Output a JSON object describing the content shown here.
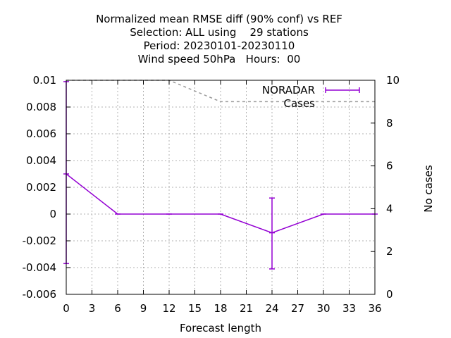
{
  "chart_data": {
    "type": "line",
    "title": [
      "Normalized mean RMSE diff (90% conf) vs REF",
      "Selection: ALL using    29 stations",
      "Period: 20230101-20230110",
      "Wind speed 50hPa   Hours:  00"
    ],
    "xlabel": "Forecast length",
    "ylabel": "",
    "y2label": "No cases",
    "x_ticks": [
      0,
      3,
      6,
      9,
      12,
      15,
      18,
      21,
      24,
      27,
      30,
      33,
      36
    ],
    "y_ticks": [
      -0.006,
      -0.004,
      -0.002,
      0,
      0.002,
      0.004,
      0.006,
      0.008,
      0.01
    ],
    "y_tick_labels": [
      "-0.006",
      "-0.004",
      "-0.002",
      "0",
      "0.002",
      "0.004",
      "0.006",
      "0.008",
      "0.01"
    ],
    "y2_ticks": [
      0,
      2,
      4,
      6,
      8,
      10
    ],
    "y2_tick_labels": [
      "0",
      "2",
      "4",
      "6",
      "8",
      "10"
    ],
    "xlim": [
      0,
      36
    ],
    "ylim": [
      -0.006,
      0.01
    ],
    "y2lim": [
      0,
      10
    ],
    "grid": true,
    "legend_position": "top-right",
    "series": [
      {
        "name": "NORADAR",
        "axis": "y",
        "color": "#9400d3",
        "style": "line-errorbars",
        "x": [
          0,
          6,
          12,
          18,
          24,
          30,
          36
        ],
        "y": [
          0.003,
          0.0,
          0.0,
          0.0,
          -0.0014,
          0.0,
          0.0
        ],
        "err_low": [
          -0.0037,
          0.0,
          0.0,
          0.0,
          -0.0041,
          0.0,
          0.0
        ],
        "err_high": [
          0.0099,
          0.0,
          0.0,
          0.0,
          0.0012,
          0.0,
          0.0
        ]
      },
      {
        "name": "Cases",
        "axis": "y2",
        "color": "#999999",
        "style": "dashed",
        "x": [
          0,
          6,
          12,
          18,
          24,
          30,
          36
        ],
        "y": [
          10,
          10,
          10,
          9,
          9,
          9,
          9
        ]
      }
    ]
  }
}
